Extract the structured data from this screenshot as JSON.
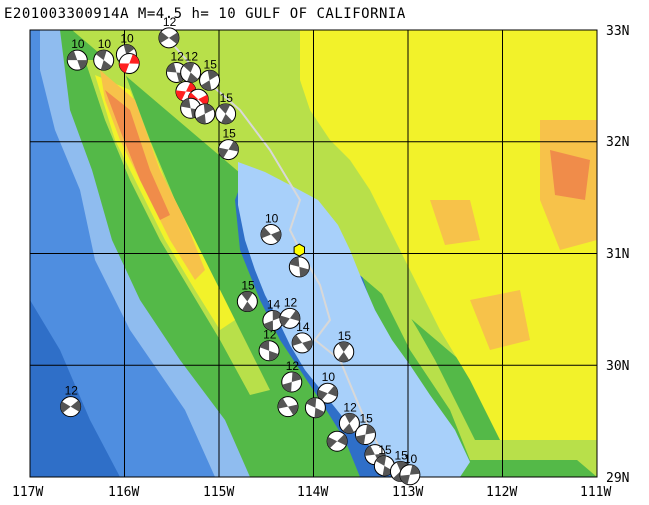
{
  "title": "E201003300914A M=4.5 h= 10 GULF OF CALIFORNIA",
  "lat_labels": [
    "33N",
    "32N",
    "31N",
    "30N",
    "29N"
  ],
  "lon_labels": [
    "117W",
    "116W",
    "115W",
    "114W",
    "113W",
    "112W",
    "111W"
  ],
  "extent": {
    "lon_min": -117,
    "lon_max": -111,
    "lat_min": 29,
    "lat_max": 33
  },
  "colors": {
    "ocean_deep": "#2f6fc8",
    "ocean_mid": "#4f8ee0",
    "ocean_shallow": "#9dc6f5",
    "gulf": "#a8d0fa",
    "coast_green": "#54b948",
    "lowland": "#b8e04a",
    "plain": "#f2f22a",
    "upland": "#f7c24a",
    "highland": "#f08c4a",
    "fault": "#cfcfcf",
    "epicenter": "#ffff00",
    "mechanism_shade_gray": "#555555",
    "mechanism_shade_red": "#ff2020"
  },
  "events": [
    {
      "depth": "10",
      "lon": -116.5,
      "lat": 32.73,
      "color": "gray"
    },
    {
      "depth": "10",
      "lon": -116.22,
      "lat": 32.73,
      "color": "gray"
    },
    {
      "depth": "10",
      "lon": -115.98,
      "lat": 32.78,
      "color": "gray"
    },
    {
      "depth": "",
      "lon": -115.95,
      "lat": 32.7,
      "color": "red"
    },
    {
      "depth": "12",
      "lon": -115.53,
      "lat": 32.93,
      "color": "gray"
    },
    {
      "depth": "12",
      "lon": -115.45,
      "lat": 32.62,
      "color": "gray"
    },
    {
      "depth": "12",
      "lon": -115.3,
      "lat": 32.62,
      "color": "gray"
    },
    {
      "depth": "15",
      "lon": -115.1,
      "lat": 32.55,
      "color": "gray"
    },
    {
      "depth": "",
      "lon": -115.35,
      "lat": 32.45,
      "color": "red"
    },
    {
      "depth": "",
      "lon": -115.22,
      "lat": 32.38,
      "color": "red"
    },
    {
      "depth": "",
      "lon": -115.3,
      "lat": 32.3,
      "color": "gray"
    },
    {
      "depth": "15",
      "lon": -114.93,
      "lat": 32.25,
      "color": "gray"
    },
    {
      "depth": "",
      "lon": -115.15,
      "lat": 32.25,
      "color": "gray"
    },
    {
      "depth": "15",
      "lon": -114.9,
      "lat": 31.93,
      "color": "gray"
    },
    {
      "depth": "10",
      "lon": -114.45,
      "lat": 31.17,
      "color": "gray"
    },
    {
      "depth": "",
      "lon": -114.15,
      "lat": 30.88,
      "color": "gray"
    },
    {
      "depth": "15",
      "lon": -114.7,
      "lat": 30.57,
      "color": "gray"
    },
    {
      "depth": "14",
      "lon": -114.43,
      "lat": 30.4,
      "color": "gray"
    },
    {
      "depth": "12",
      "lon": -114.25,
      "lat": 30.42,
      "color": "gray"
    },
    {
      "depth": "14",
      "lon": -114.12,
      "lat": 30.2,
      "color": "gray"
    },
    {
      "depth": "12",
      "lon": -114.47,
      "lat": 30.13,
      "color": "gray"
    },
    {
      "depth": "15",
      "lon": -113.68,
      "lat": 30.12,
      "color": "gray"
    },
    {
      "depth": "12",
      "lon": -114.23,
      "lat": 29.85,
      "color": "gray"
    },
    {
      "depth": "10",
      "lon": -113.85,
      "lat": 29.75,
      "color": "gray"
    },
    {
      "depth": "",
      "lon": -114.27,
      "lat": 29.63,
      "color": "gray"
    },
    {
      "depth": "",
      "lon": -113.98,
      "lat": 29.62,
      "color": "gray"
    },
    {
      "depth": "12",
      "lon": -113.62,
      "lat": 29.48,
      "color": "gray"
    },
    {
      "depth": "15",
      "lon": -113.45,
      "lat": 29.38,
      "color": "gray"
    },
    {
      "depth": "",
      "lon": -113.75,
      "lat": 29.32,
      "color": "gray"
    },
    {
      "depth": "",
      "lon": -113.35,
      "lat": 29.2,
      "color": "gray"
    },
    {
      "depth": "15",
      "lon": -113.25,
      "lat": 29.1,
      "color": "gray"
    },
    {
      "depth": "15",
      "lon": -113.08,
      "lat": 29.05,
      "color": "gray"
    },
    {
      "depth": "10",
      "lon": -112.98,
      "lat": 29.02,
      "color": "gray"
    },
    {
      "depth": "12",
      "lon": -116.57,
      "lat": 29.63,
      "color": "gray"
    }
  ],
  "epicenter": {
    "lon": -114.15,
    "lat": 31.03
  }
}
